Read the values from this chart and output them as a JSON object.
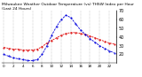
{
  "title": "Milwaukee Weather Outdoor Temperature (vs) THSW Index per Hour (Last 24 Hours)",
  "hours": [
    0,
    1,
    2,
    3,
    4,
    5,
    6,
    7,
    8,
    9,
    10,
    11,
    12,
    13,
    14,
    15,
    16,
    17,
    18,
    19,
    20,
    21,
    22,
    23
  ],
  "temp": [
    28,
    27,
    26,
    26,
    25,
    25,
    25,
    26,
    29,
    33,
    36,
    39,
    42,
    44,
    45,
    45,
    44,
    43,
    41,
    39,
    37,
    35,
    33,
    32
  ],
  "thsw": [
    20,
    18,
    16,
    15,
    14,
    13,
    13,
    14,
    20,
    30,
    42,
    52,
    60,
    65,
    62,
    55,
    48,
    43,
    38,
    34,
    30,
    27,
    24,
    22
  ],
  "temp_color": "#dd0000",
  "thsw_color": "#0000dd",
  "bg_color": "#ffffff",
  "grid_color": "#888888",
  "ylim": [
    10,
    70
  ],
  "yticks": [
    20,
    30,
    40,
    50,
    60,
    70
  ],
  "title_fontsize": 3.2,
  "tick_fontsize": 3.0,
  "ylabel_fontsize": 3.5
}
